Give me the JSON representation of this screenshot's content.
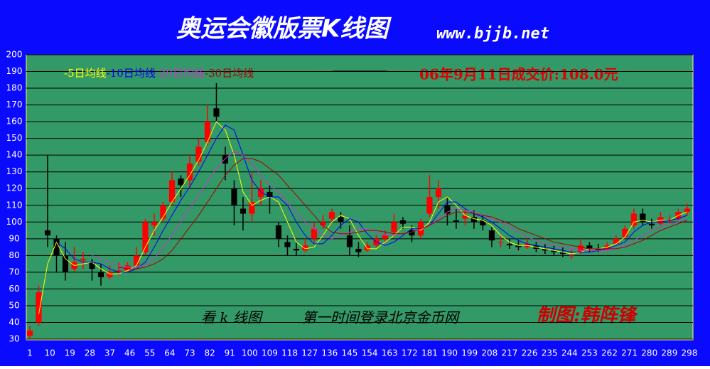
{
  "chart_data": {
    "type": "candlestick",
    "title": "奥运会徽版票K线图",
    "subtitle": "www.bjjb.net",
    "annotation": "06年9月11日成交价:108.0元",
    "footer_texts": [
      "看 k 线图",
      "第一时间登录北京金币网",
      "制图:韩阵锋"
    ],
    "xlim": [
      1,
      298
    ],
    "xticks": [
      1,
      10,
      19,
      28,
      37,
      46,
      55,
      64,
      73,
      82,
      91,
      100,
      109,
      118,
      127,
      136,
      145,
      154,
      163,
      172,
      181,
      190,
      199,
      208,
      217,
      226,
      235,
      244,
      253,
      262,
      271,
      280,
      289,
      298
    ],
    "ylim": [
      30,
      200
    ],
    "yticks": [
      30,
      40,
      50,
      60,
      70,
      80,
      90,
      100,
      110,
      120,
      130,
      140,
      150,
      160,
      170,
      180,
      190,
      200
    ],
    "grid": true,
    "up_color": "#ff0000",
    "down_color": "#000000",
    "x": [
      1,
      5,
      9,
      13,
      17,
      21,
      25,
      29,
      33,
      37,
      41,
      45,
      49,
      53,
      57,
      61,
      65,
      69,
      73,
      77,
      81,
      85,
      89,
      93,
      97,
      101,
      105,
      109,
      113,
      117,
      121,
      125,
      129,
      133,
      137,
      141,
      145,
      149,
      153,
      157,
      161,
      165,
      169,
      173,
      177,
      181,
      185,
      189,
      193,
      197,
      201,
      205,
      209,
      213,
      217,
      221,
      225,
      229,
      233,
      237,
      241,
      245,
      249,
      253,
      257,
      261,
      265,
      269,
      273,
      277,
      281,
      285,
      289,
      293,
      297
    ],
    "open": [
      32,
      40,
      95,
      90,
      80,
      72,
      77,
      76,
      70,
      67,
      70,
      71,
      74,
      82,
      98,
      102,
      112,
      126,
      125,
      136,
      148,
      168,
      140,
      120,
      108,
      105,
      115,
      118,
      98,
      88,
      84,
      83,
      90,
      98,
      102,
      103,
      92,
      84,
      83,
      86,
      90,
      94,
      101,
      95,
      92,
      105,
      115,
      110,
      101,
      102,
      103,
      101,
      95,
      88,
      87,
      86,
      85,
      86,
      84,
      83,
      82,
      80,
      82,
      86,
      84,
      84,
      87,
      91,
      98,
      105,
      99,
      99,
      101,
      102,
      106
    ],
    "high": [
      38,
      62,
      140,
      92,
      88,
      85,
      82,
      78,
      75,
      74,
      76,
      76,
      85,
      102,
      105,
      112,
      130,
      128,
      140,
      150,
      170,
      183,
      145,
      125,
      115,
      130,
      125,
      122,
      100,
      92,
      88,
      90,
      100,
      104,
      108,
      106,
      98,
      88,
      88,
      92,
      95,
      105,
      103,
      98,
      102,
      128,
      125,
      115,
      108,
      108,
      107,
      104,
      97,
      92,
      90,
      89,
      90,
      88,
      87,
      86,
      85,
      83,
      90,
      88,
      87,
      88,
      92,
      98,
      108,
      108,
      102,
      106,
      104,
      108,
      111
    ],
    "low": [
      30,
      38,
      85,
      70,
      65,
      70,
      72,
      65,
      62,
      66,
      68,
      70,
      73,
      80,
      92,
      100,
      110,
      115,
      120,
      134,
      146,
      160,
      125,
      98,
      95,
      100,
      110,
      105,
      85,
      80,
      80,
      82,
      88,
      96,
      100,
      96,
      80,
      79,
      82,
      85,
      88,
      92,
      96,
      88,
      90,
      103,
      108,
      98,
      96,
      98,
      96,
      95,
      85,
      85,
      84,
      83,
      84,
      82,
      81,
      80,
      79,
      78,
      81,
      82,
      82,
      83,
      86,
      90,
      96,
      98,
      96,
      98,
      99,
      101,
      104
    ],
    "close": [
      35,
      58,
      92,
      80,
      70,
      76,
      78,
      72,
      67,
      70,
      71,
      74,
      80,
      100,
      100,
      110,
      125,
      122,
      135,
      145,
      160,
      163,
      135,
      110,
      105,
      112,
      120,
      115,
      90,
      85,
      83,
      86,
      96,
      100,
      106,
      100,
      85,
      82,
      86,
      90,
      92,
      100,
      99,
      92,
      100,
      115,
      120,
      105,
      100,
      104,
      100,
      98,
      89,
      88,
      86,
      85,
      87,
      84,
      83,
      82,
      81,
      80,
      86,
      84,
      83,
      86,
      90,
      96,
      105,
      100,
      98,
      103,
      101,
      106,
      108
    ],
    "series": [
      {
        "name": "-5日均线",
        "color": "#ffff00",
        "values": [
          null,
          45,
          75,
          88,
          78,
          74,
          75,
          76,
          72,
          69,
          69,
          71,
          74,
          85,
          95,
          103,
          112,
          120,
          128,
          137,
          148,
          160,
          155,
          140,
          118,
          110,
          113,
          115,
          112,
          100,
          88,
          84,
          85,
          92,
          100,
          104,
          102,
          92,
          84,
          84,
          88,
          92,
          97,
          97,
          95,
          100,
          112,
          115,
          110,
          104,
          102,
          101,
          98,
          92,
          88,
          86,
          86,
          85,
          84,
          83,
          82,
          81,
          82,
          84,
          84,
          85,
          87,
          91,
          100,
          101,
          100,
          101,
          101,
          104,
          106
        ]
      },
      {
        "name": "-10日均线",
        "color": "#0000ff",
        "values": [
          null,
          null,
          null,
          88,
          84,
          78,
          76,
          76,
          75,
          72,
          70,
          70,
          72,
          76,
          85,
          95,
          104,
          113,
          121,
          130,
          140,
          150,
          158,
          155,
          140,
          125,
          118,
          115,
          115,
          110,
          100,
          92,
          87,
          87,
          92,
          98,
          102,
          100,
          93,
          88,
          86,
          88,
          92,
          96,
          96,
          98,
          105,
          112,
          112,
          108,
          105,
          103,
          100,
          96,
          92,
          89,
          87,
          86,
          85,
          84,
          83,
          82,
          82,
          82,
          83,
          84,
          86,
          88,
          94,
          98,
          100,
          100,
          101,
          102,
          104
        ]
      },
      {
        "name": "-20日均线",
        "color": "#cc33cc",
        "values": [
          null,
          null,
          null,
          null,
          null,
          null,
          null,
          80,
          78,
          76,
          74,
          73,
          73,
          74,
          78,
          85,
          92,
          100,
          108,
          116,
          124,
          132,
          138,
          142,
          140,
          135,
          128,
          122,
          118,
          112,
          105,
          100,
          96,
          92,
          90,
          92,
          94,
          96,
          96,
          94,
          92,
          92,
          93,
          94,
          96,
          98,
          102,
          106,
          108,
          107,
          106,
          104,
          102,
          100,
          97,
          94,
          91,
          89,
          87,
          86,
          85,
          84,
          83,
          83,
          83,
          83,
          84,
          86,
          89,
          92,
          95,
          97,
          99,
          100,
          102
        ]
      },
      {
        "name": "-30日均线",
        "color": "#aa0000",
        "values": [
          null,
          null,
          null,
          null,
          null,
          null,
          null,
          null,
          null,
          null,
          73,
          72,
          72,
          73,
          75,
          78,
          83,
          90,
          97,
          104,
          112,
          120,
          128,
          134,
          138,
          138,
          136,
          132,
          128,
          122,
          116,
          110,
          104,
          98,
          94,
          93,
          93,
          94,
          95,
          95,
          94,
          93,
          93,
          94,
          96,
          98,
          101,
          104,
          106,
          106,
          105,
          104,
          103,
          101,
          99,
          96,
          94,
          92,
          90,
          88,
          87,
          86,
          85,
          84,
          84,
          84,
          84,
          85,
          87,
          89,
          92,
          95,
          97,
          99,
          101
        ]
      }
    ]
  }
}
